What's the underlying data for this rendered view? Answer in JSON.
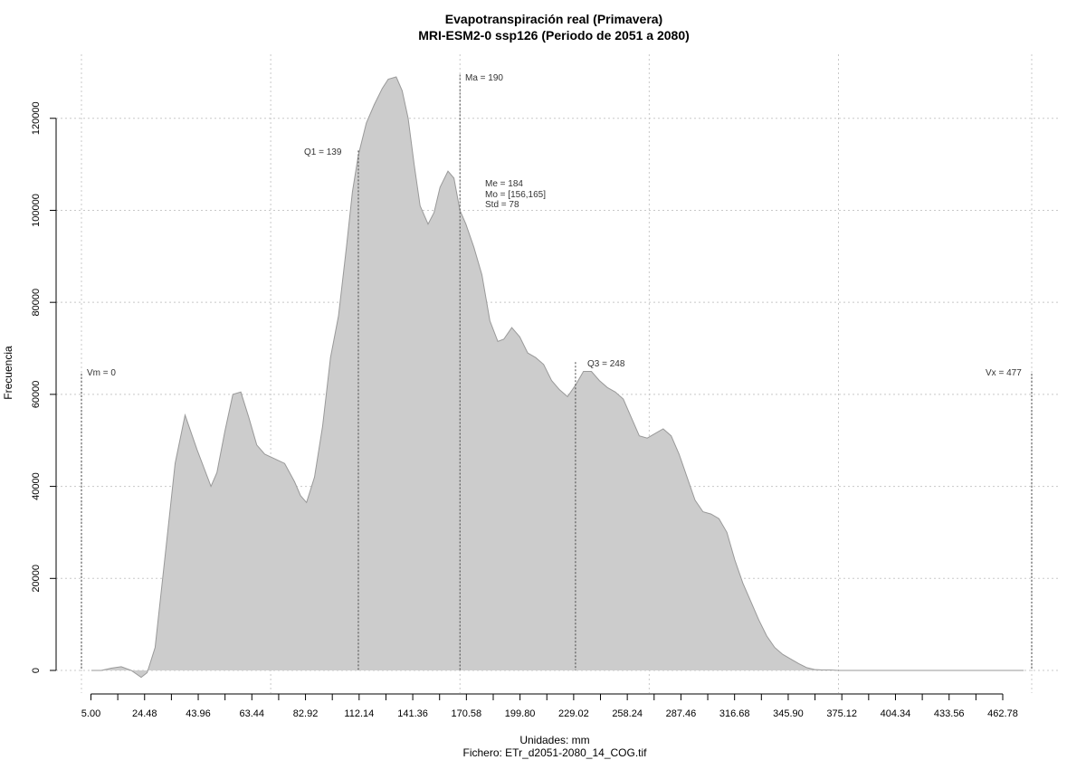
{
  "chart_data": {
    "type": "area",
    "title": "Evapotranspiración real (Primavera)",
    "subtitle": "MRI-ESM2-0 ssp126 (Periodo de 2051 a 2080)",
    "xlabel": "Unidades: mm",
    "caption": "Fichero: ETr_d2051-2080_14_COG.tif",
    "ylabel": "Frecuencia",
    "xlim": [
      -5,
      483
    ],
    "ylim": [
      -5000,
      132000
    ],
    "x_ticks": [
      "5.00",
      "24.48",
      "43.96",
      "63.44",
      "82.92",
      "112.14",
      "141.36",
      "170.58",
      "199.80",
      "229.02",
      "258.24",
      "287.46",
      "316.68",
      "345.90",
      "375.12",
      "404.34",
      "433.56",
      "462.78"
    ],
    "y_ticks": [
      "0",
      "20000",
      "40000",
      "60000",
      "80000",
      "100000",
      "120000"
    ],
    "y_tick_values": [
      0,
      20000,
      40000,
      60000,
      80000,
      100000,
      120000
    ],
    "x_grid": [
      0,
      95,
      190,
      285,
      380,
      477
    ],
    "grid": true,
    "fill_color": "#cccccc",
    "line_color": "#999999",
    "x": [
      5,
      10,
      15,
      20,
      25,
      30,
      33,
      37,
      42,
      47,
      52,
      58,
      65,
      68,
      72,
      76,
      80,
      84,
      88,
      92,
      97,
      102,
      107,
      110,
      113,
      117,
      121,
      125,
      129,
      133,
      136,
      139,
      143,
      147,
      151,
      154,
      158,
      161,
      164,
      167,
      170,
      174,
      177,
      180,
      184,
      187,
      190,
      193,
      197,
      201,
      205,
      209,
      212,
      216,
      220,
      224,
      228,
      232,
      236,
      240,
      244,
      248,
      252,
      256,
      260,
      264,
      268,
      272,
      276,
      280,
      284,
      288,
      292,
      296,
      300,
      304,
      308,
      312,
      316,
      320,
      324,
      328,
      332,
      336,
      340,
      344,
      348,
      352,
      356,
      360,
      364,
      368,
      372,
      376,
      380,
      384,
      388,
      392,
      396,
      400,
      404,
      420,
      440,
      460,
      473
    ],
    "y": [
      0,
      0,
      500,
      800,
      0,
      -1500,
      -500,
      5000,
      25000,
      45000,
      55500,
      48000,
      40000,
      43000,
      52000,
      60000,
      60500,
      55000,
      49000,
      47000,
      46000,
      45000,
      41000,
      38000,
      36500,
      42000,
      53000,
      68000,
      77000,
      92000,
      104000,
      112000,
      119000,
      123000,
      126500,
      128500,
      129000,
      126000,
      120000,
      110000,
      101000,
      97000,
      99500,
      105000,
      108500,
      107000,
      100000,
      97000,
      92000,
      86000,
      76000,
      71500,
      72000,
      74500,
      72500,
      69000,
      68000,
      66500,
      63000,
      61000,
      59500,
      62000,
      65000,
      65000,
      63000,
      61500,
      60500,
      59000,
      55000,
      51000,
      50500,
      51500,
      52500,
      51000,
      47000,
      42000,
      37000,
      34500,
      34000,
      33000,
      30000,
      24000,
      19000,
      15000,
      11000,
      7500,
      5000,
      3500,
      2500,
      1500,
      600,
      200,
      100,
      100,
      0,
      0,
      0,
      0,
      0,
      0,
      0,
      0,
      0,
      0,
      0
    ],
    "annotations": {
      "vm": {
        "label": "Vm = 0",
        "x": 0,
        "y": 64500
      },
      "q1": {
        "label": "Q1 = 139",
        "x": 139,
        "y": 113000
      },
      "ma": {
        "label": "Ma = 190",
        "x": 190,
        "y": 129500
      },
      "me": {
        "label": "Me = 184"
      },
      "mo": {
        "label": "Mo = [156,165]"
      },
      "std": {
        "label": "Std = 78"
      },
      "q3": {
        "label": "Q3 = 248",
        "x": 248,
        "y": 67000
      },
      "vx": {
        "label": "Vx = 477",
        "x": 477,
        "y": 64500
      }
    }
  }
}
